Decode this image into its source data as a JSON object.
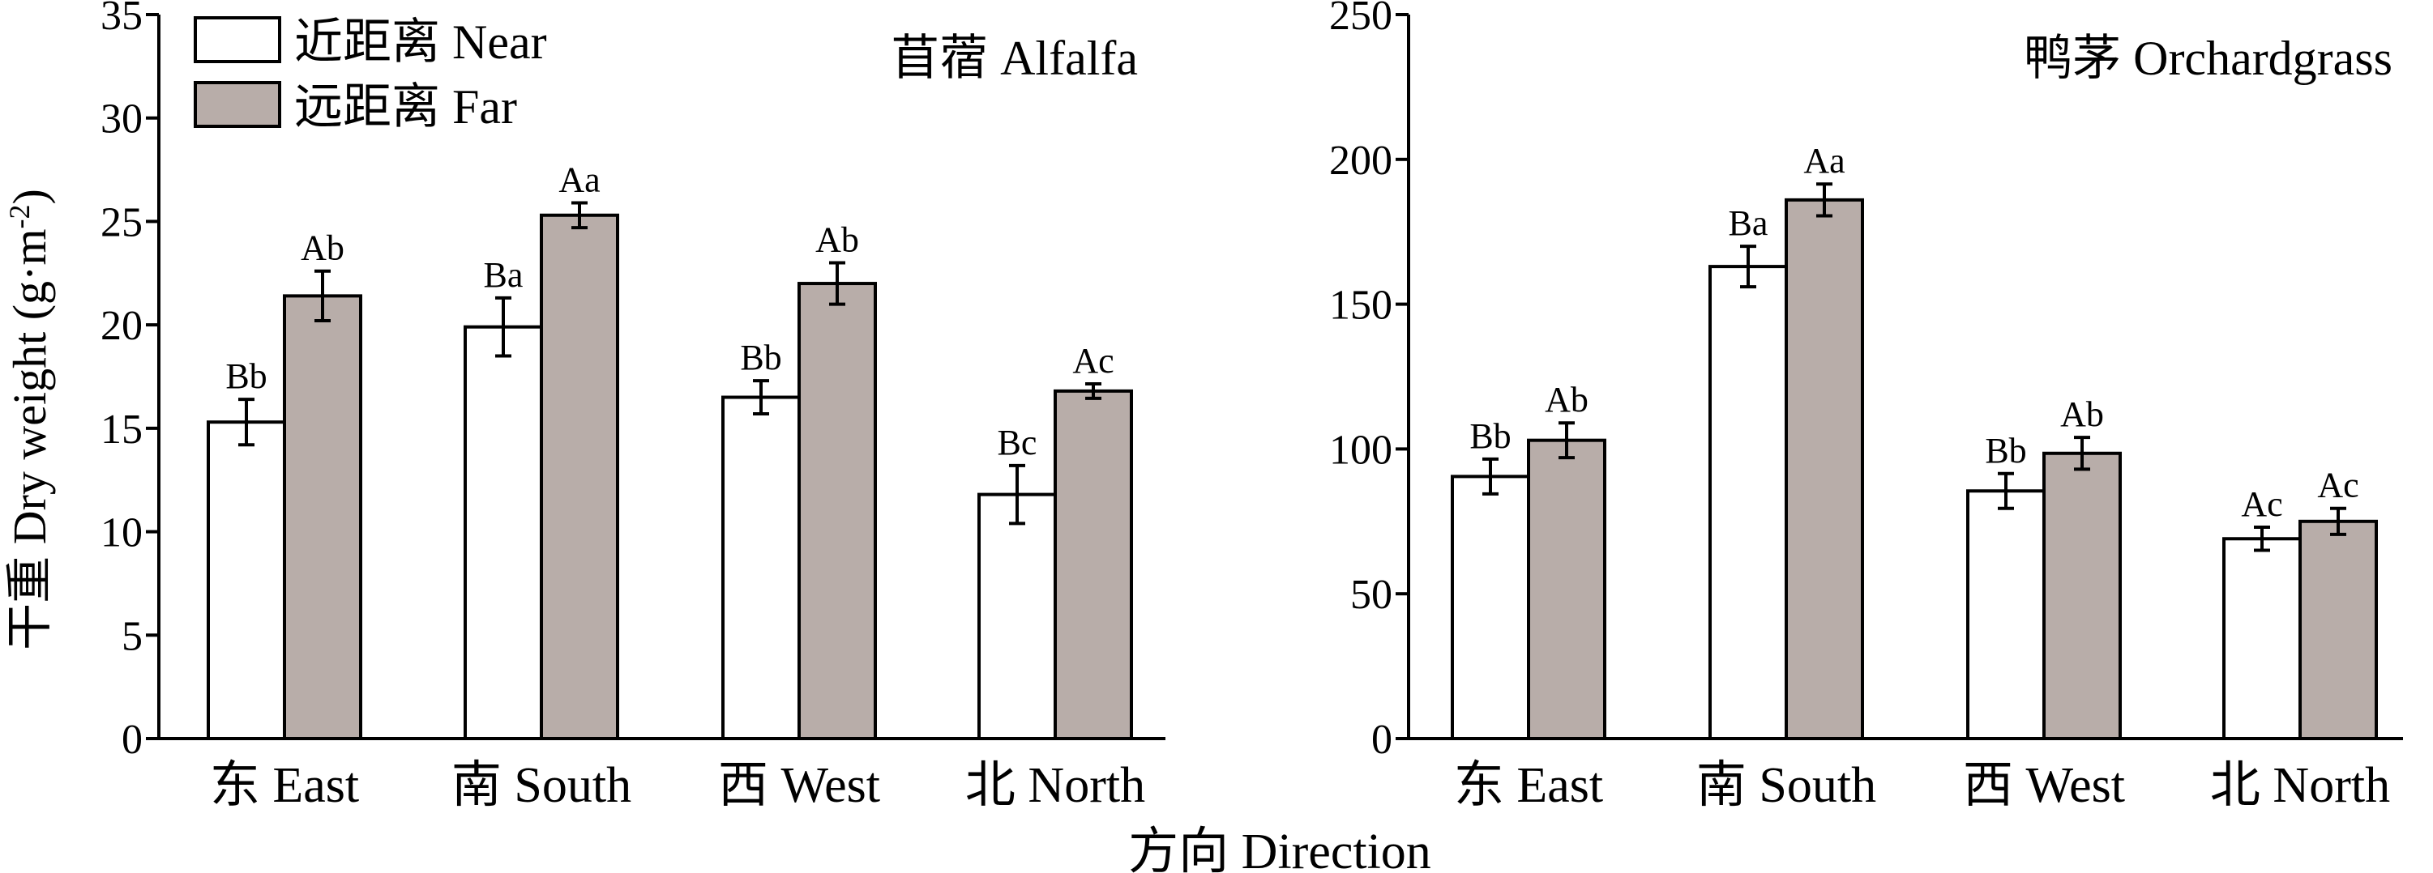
{
  "figure": {
    "ylabel": "干重 Dry weight (g·m",
    "ylabel_sup": "-2",
    "ylabel_close": ")",
    "xlabel": "方向 Direction",
    "legend": [
      {
        "label": "近距离 Near",
        "color": "#ffffff"
      },
      {
        "label": "远距离 Far",
        "color": "#b8ada9"
      }
    ]
  },
  "chart_data": [
    {
      "type": "bar",
      "title": "苜蓿 Alfalfa",
      "categories": [
        "东 East",
        "南 South",
        "西 West",
        "北 North"
      ],
      "ylim": [
        0,
        35
      ],
      "yticks": [
        0,
        5,
        10,
        15,
        20,
        25,
        30,
        35
      ],
      "series": [
        {
          "name": "近距离 Near",
          "color": "#ffffff",
          "values": [
            15.3,
            19.9,
            16.5,
            11.8
          ],
          "errors": [
            1.1,
            1.4,
            0.8,
            1.4
          ],
          "labels": [
            "Bb",
            "Ba",
            "Bb",
            "Bc"
          ]
        },
        {
          "name": "远距离 Far",
          "color": "#b8ada9",
          "values": [
            21.4,
            25.3,
            22.0,
            16.8
          ],
          "errors": [
            1.2,
            0.6,
            1.0,
            0.35
          ],
          "labels": [
            "Ab",
            "Aa",
            "Ab",
            "Ac"
          ]
        }
      ]
    },
    {
      "type": "bar",
      "title": "鸭茅 Orchardgrass",
      "categories": [
        "东 East",
        "南 South",
        "西 West",
        "北 North"
      ],
      "ylim": [
        0,
        250
      ],
      "yticks": [
        0,
        50,
        100,
        150,
        200,
        250
      ],
      "series": [
        {
          "name": "近距离 Near",
          "color": "#ffffff",
          "values": [
            90.5,
            163,
            85.5,
            69
          ],
          "errors": [
            6,
            7,
            6,
            4
          ],
          "labels": [
            "Bb",
            "Ba",
            "Bb",
            "Ac"
          ]
        },
        {
          "name": "远距离 Far",
          "color": "#b8ada9",
          "values": [
            103,
            186,
            98.5,
            75
          ],
          "errors": [
            6,
            5.5,
            5.5,
            4.5
          ],
          "labels": [
            "Ab",
            "Aa",
            "Ab",
            "Ac"
          ]
        }
      ]
    }
  ]
}
